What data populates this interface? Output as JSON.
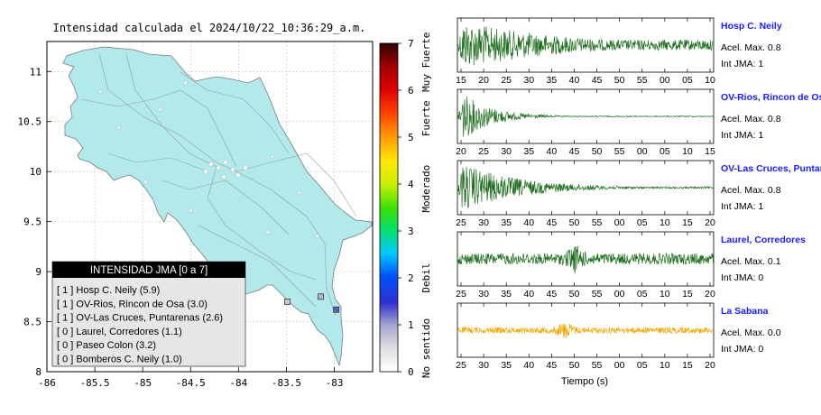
{
  "map": {
    "title": "Intensidad calculada el 2024/10/22_10:36:29_a.m.",
    "x_ticks": [
      "-86",
      "-85.5",
      "-85",
      "-84.5",
      "-84",
      "-83.5",
      "-83"
    ],
    "y_ticks": [
      "11",
      "10.5",
      "10",
      "9.5",
      "9",
      "8.5",
      "8"
    ],
    "xlim": [
      -86,
      -82.6
    ],
    "ylim": [
      8,
      11.3
    ],
    "land_color": "#b2eaec",
    "legend": {
      "title": "INTENSIDAD JMA [0 a 7]",
      "items": [
        "[ 1 ]  Hosp C. Neily (5.9)",
        "[ 1 ]  OV-Rios, Rincon de Osa (3.0)",
        "[ 1 ]  OV-Las Cruces, Puntarenas (2.6)",
        "[ 0 ]  Laurel, Corredores (1.1)",
        "[ 0 ]  Paseo Colon (3.2)",
        "[ 0 ]  Bomberos C. Neily (1.0)"
      ]
    },
    "stations": [
      {
        "lon": -83.14,
        "lat": 8.75,
        "color": "#b2b2d6"
      },
      {
        "lon": -82.98,
        "lat": 8.62,
        "color": "#6060c0"
      },
      {
        "lon": -83.49,
        "lat": 8.7,
        "color": "#c8c8c8"
      }
    ]
  },
  "colorbar": {
    "ticks": [
      "0",
      "1",
      "2",
      "3",
      "4",
      "5",
      "6",
      "7"
    ],
    "category_labels": [
      "No sentido",
      "Debil",
      "Moderado",
      "Fuerte",
      "Muy Fuerte"
    ]
  },
  "chart_data": {
    "type": "line",
    "xlabel": "Tiempo (s)",
    "traces": [
      {
        "name": "Hosp C. Neily",
        "accel_label": "Acel. Max. 0.8",
        "jma_label": "Int JMA: 1",
        "color": "#1e6e1e",
        "ticks": [
          "15",
          "20",
          "25",
          "30",
          "35",
          "40",
          "45",
          "50",
          "55",
          "00",
          "05",
          "10"
        ],
        "amp": 0.95,
        "decay": 2.6,
        "onset": 0.02,
        "tail": 0.22
      },
      {
        "name": "OV-Rios, Rincon de Os",
        "accel_label": "Acel. Max. 0.8",
        "jma_label": "Int JMA: 1",
        "color": "#1e6e1e",
        "ticks": [
          "20",
          "25",
          "30",
          "35",
          "40",
          "45",
          "50",
          "55",
          "00",
          "05",
          "10",
          "15"
        ],
        "amp": 0.95,
        "decay": 9,
        "onset": 0.02,
        "tail": 0.02
      },
      {
        "name": "OV-Las Cruces, Puntar",
        "accel_label": "Acel. Max. 0.8",
        "jma_label": "Int JMA: 1",
        "color": "#1e6e1e",
        "ticks": [
          "25",
          "30",
          "35",
          "40",
          "45",
          "50",
          "55",
          "00",
          "05",
          "10",
          "15",
          "20"
        ],
        "amp": 0.95,
        "decay": 4.5,
        "onset": 0.02,
        "tail": 0.04
      },
      {
        "name": "Laurel, Corredores",
        "accel_label": "Acel. Max. 0.1",
        "jma_label": "Int JMA: 0",
        "color": "#1e6e1e",
        "ticks": [
          "25",
          "30",
          "35",
          "40",
          "45",
          "50",
          "55",
          "00",
          "05",
          "10",
          "15",
          "20"
        ],
        "amp": 0.55,
        "decay": 0,
        "onset": 0.0,
        "tail": 0.4,
        "burst": 0.46
      },
      {
        "name": "La Sabana",
        "accel_label": "Acel. Max. 0.0",
        "jma_label": "Int JMA: 0",
        "color": "#f0a800",
        "ticks": [
          "25",
          "30",
          "35",
          "40",
          "45",
          "50",
          "55",
          "00",
          "05",
          "10",
          "15",
          "20"
        ],
        "amp": 0.35,
        "decay": 0,
        "onset": 0.0,
        "tail": 0.35,
        "burst": 0.42
      }
    ]
  }
}
